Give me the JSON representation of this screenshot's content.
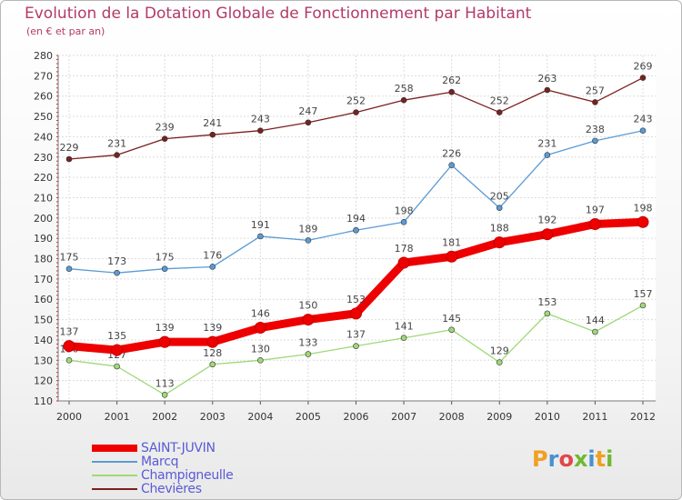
{
  "title": "Evolution de la Dotation Globale de Fonctionnement par Habitant",
  "subtitle": "(en € et par an)",
  "logo": {
    "text": "Proxiti",
    "letters": [
      {
        "ch": "P",
        "color": "#f0a020"
      },
      {
        "ch": "r",
        "color": "#4a90d0"
      },
      {
        "ch": "o",
        "color": "#e04848"
      },
      {
        "ch": "x",
        "color": "#70b830"
      },
      {
        "ch": "i",
        "color": "#4a90d0"
      },
      {
        "ch": "t",
        "color": "#f0a020"
      },
      {
        "ch": "i",
        "color": "#70b830"
      }
    ]
  },
  "chart_data": {
    "type": "line",
    "x": [
      "2000",
      "2001",
      "2002",
      "2003",
      "2004",
      "2005",
      "2006",
      "2007",
      "2008",
      "2009",
      "2010",
      "2011",
      "2012"
    ],
    "ylim": [
      110,
      280
    ],
    "yticks": [
      110,
      120,
      130,
      140,
      150,
      160,
      170,
      180,
      190,
      200,
      210,
      220,
      230,
      240,
      250,
      260,
      270,
      280
    ],
    "grid": true,
    "legend_position": "bottom-left",
    "series": [
      {
        "name": "SAINT-JUVIN",
        "color": "#ee0000",
        "values": [
          137,
          135,
          139,
          139,
          146,
          150,
          153,
          178,
          181,
          188,
          192,
          197,
          198
        ]
      },
      {
        "name": "Marcq",
        "color": "#5b9bd5",
        "values": [
          175,
          173,
          175,
          176,
          191,
          189,
          194,
          198,
          226,
          205,
          231,
          238,
          243
        ]
      },
      {
        "name": "Champigneulle",
        "color": "#9fd878",
        "values": [
          130,
          127,
          113,
          128,
          130,
          133,
          137,
          141,
          145,
          129,
          153,
          144,
          157
        ]
      },
      {
        "name": "Chevières",
        "color": "#7a2020",
        "values": [
          229,
          231,
          239,
          241,
          243,
          247,
          252,
          258,
          262,
          252,
          263,
          257,
          269
        ]
      }
    ],
    "data_labels": [
      {
        "series": "SAINT-JUVIN",
        "labels": [
          "137",
          "135",
          "139",
          "139",
          "146",
          "150",
          "153",
          "178",
          "181",
          "188",
          "192",
          "197",
          "198"
        ]
      },
      {
        "series": "Marcq",
        "labels": [
          "175",
          "173",
          "175",
          "176",
          "191",
          "189",
          "194",
          "198",
          "226",
          "205",
          "231",
          "238",
          "243"
        ]
      },
      {
        "series": "Champigneulle",
        "labels": [
          "130",
          "127",
          "113",
          "128",
          "130",
          "133",
          "137",
          "141",
          "145",
          "129",
          "153",
          "144",
          "157"
        ]
      },
      {
        "series": "Chevières",
        "labels": [
          "229",
          "231",
          "239",
          "241",
          "243",
          "247",
          "252",
          "258",
          "262",
          "252",
          "263",
          "257",
          "269"
        ]
      }
    ]
  }
}
